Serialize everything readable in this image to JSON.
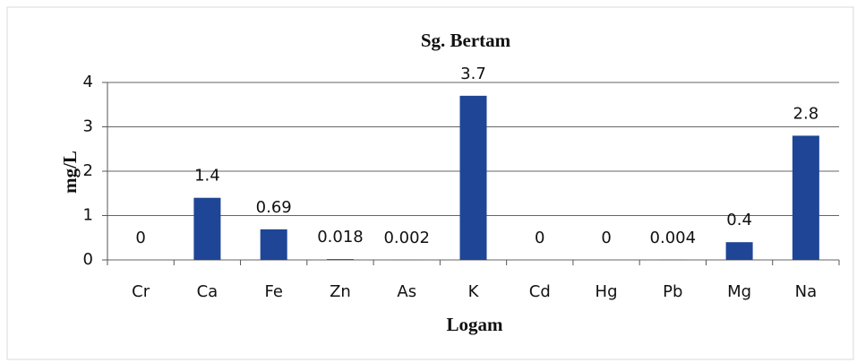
{
  "chart_data": {
    "type": "bar",
    "title": "Sg. Bertam",
    "x_label": "Logam",
    "y_label": "mg/L",
    "categories": [
      "Cr",
      "Ca",
      "Fe",
      "Zn",
      "As",
      "K",
      "Cd",
      "Hg",
      "Pb",
      "Mg",
      "Na"
    ],
    "values": [
      0,
      1.4,
      0.69,
      0.018,
      0.002,
      3.7,
      0,
      0,
      0.004,
      0.4,
      2.8
    ],
    "color": "#1f4596",
    "ylim": [
      0,
      4
    ],
    "yticks": [
      0,
      1,
      2,
      3,
      4
    ],
    "grid": true
  }
}
